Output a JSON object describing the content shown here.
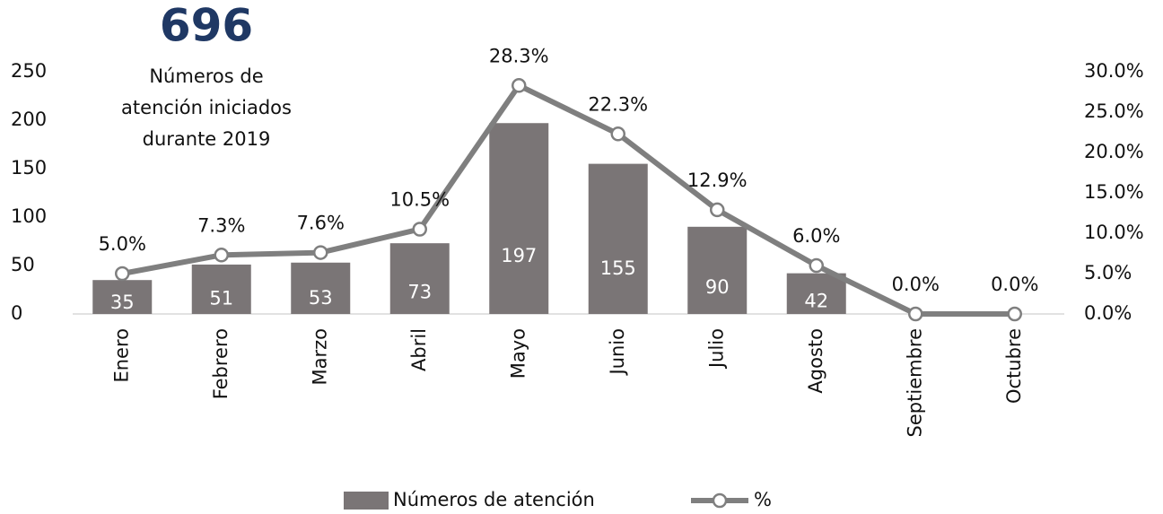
{
  "chart_data": {
    "type": "bar_line",
    "big_number": "696",
    "caption": [
      "Números de",
      "atención iniciados",
      "durante 2019"
    ],
    "categories": [
      "Enero",
      "Febrero",
      "Marzo",
      "Abril",
      "Mayo",
      "Junio",
      "Julio",
      "Agosto",
      "Septiembre",
      "Octubre"
    ],
    "series": [
      {
        "name": "Números de atención",
        "type": "bar",
        "color": "#7a7576",
        "values": [
          35,
          51,
          53,
          73,
          197,
          155,
          90,
          42,
          null,
          null
        ]
      },
      {
        "name": "%",
        "type": "line",
        "axis": "y2",
        "color": "#7f7f7f",
        "values": [
          5.0,
          7.3,
          7.6,
          10.5,
          28.3,
          22.3,
          12.9,
          6.0,
          0.0,
          0.0
        ],
        "value_labels": [
          "5.0%",
          "7.3%",
          "7.6%",
          "10.5%",
          "28.3%",
          "22.3%",
          "12.9%",
          "6.0%",
          "0.0%",
          "0.0%"
        ]
      }
    ],
    "ylim": [
      0,
      250
    ],
    "yticks": [
      0,
      50,
      100,
      150,
      200,
      250
    ],
    "y2lim": [
      0,
      30
    ],
    "y2ticks": [
      {
        "value": 0,
        "label": "0.0%"
      },
      {
        "value": 5,
        "label": "5.0%"
      },
      {
        "value": 10,
        "label": "10.0%"
      },
      {
        "value": 15,
        "label": "15.0%"
      },
      {
        "value": 20,
        "label": "20.0%"
      },
      {
        "value": 25,
        "label": "25.0%"
      },
      {
        "value": 30,
        "label": "30.0%"
      }
    ],
    "legend": "bottom"
  }
}
